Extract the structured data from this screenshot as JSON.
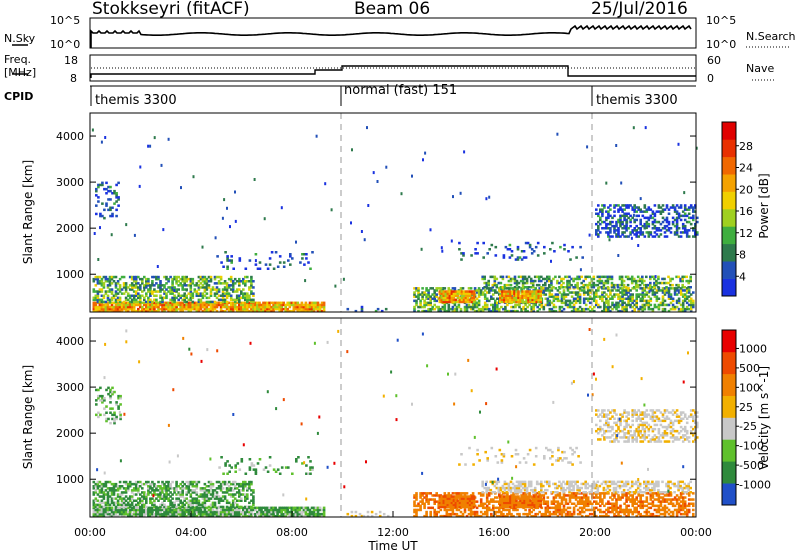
{
  "header": {
    "station": "Stokkseyri (fitACF)",
    "beam": "Beam 06",
    "date": "25/Jul/2016"
  },
  "left_labels": {
    "nsky": "N.Sky",
    "freq": "Freq.",
    "freq_unit": "[MHz]",
    "cpid": "CPID"
  },
  "right_labels": {
    "nsearch": "N.Search",
    "nave": "Nave"
  },
  "noise_axis": {
    "left_top": "10^5",
    "left_bottom": "10^0",
    "right_top": "10^5",
    "right_bottom": "10^0"
  },
  "freq_axis": {
    "left_top": "18",
    "left_bottom": "8",
    "right_top": "60",
    "right_bottom": "0"
  },
  "cpid_segments": [
    "themis 3300",
    "normal (fast) 151",
    "themis 3300"
  ],
  "chart_data": [
    {
      "type": "heatmap",
      "name": "power",
      "ylabel": "Slant Range [km]",
      "yticks": [
        "1000",
        "2000",
        "3000",
        "4000"
      ],
      "xlim": [
        0,
        24
      ],
      "ylim": [
        180,
        4500
      ],
      "colorbar": {
        "label": "Power [dB]",
        "ticks": [
          "4",
          "8",
          "12",
          "16",
          "20",
          "24",
          "28"
        ],
        "colors": [
          "#1a32e0",
          "#2250b8",
          "#2e7a4c",
          "#3fae3f",
          "#9fd020",
          "#f0d000",
          "#f4a200",
          "#f06800",
          "#e83000",
          "#e00000"
        ]
      }
    },
    {
      "type": "heatmap",
      "name": "velocity",
      "ylabel": "Slant Range [km]",
      "yticks": [
        "1000",
        "2000",
        "3000",
        "4000"
      ],
      "xlabel": "Time UT",
      "xticks": [
        "00:00",
        "04:00",
        "08:00",
        "12:00",
        "16:00",
        "20:00",
        "00:00"
      ],
      "xlim": [
        0,
        24
      ],
      "ylim": [
        180,
        4500
      ],
      "colorbar": {
        "label": "Velocity [m s^-1]",
        "ticks": [
          "1000",
          "500",
          "100",
          "25",
          "-25",
          "-100",
          "-500",
          "-1000"
        ],
        "colors": [
          "#2050c8",
          "#2f8a3c",
          "#5fc02c",
          "#c8c8c8",
          "#f2b000",
          "#f08000",
          "#ee4a00",
          "#e80000"
        ]
      }
    }
  ]
}
